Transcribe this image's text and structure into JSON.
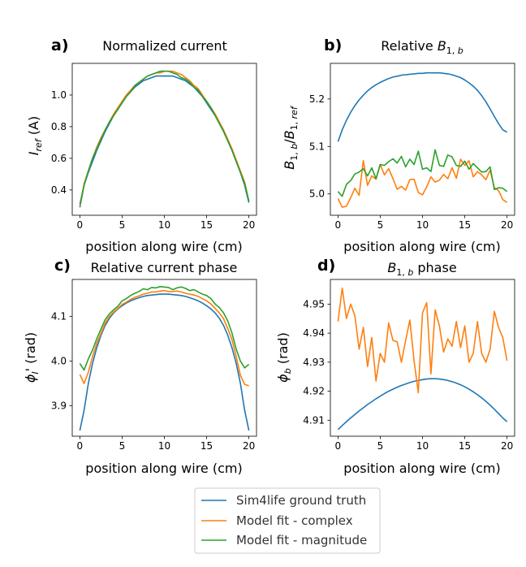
{
  "colors": {
    "ground_truth": "#1f77b4",
    "complex": "#ff7f0e",
    "magnitude": "#2ca02c"
  },
  "legend": {
    "ground_truth": "Sim4life ground truth",
    "complex": "Model fit - complex",
    "magnitude": "Model fit - magnitude"
  },
  "chart_data": [
    {
      "type": "line",
      "panel_label": "a)",
      "title": "Normalized current",
      "xlabel": "position along wire (cm)",
      "ylabel": "I_ref (A)",
      "xlim": [
        -0.9,
        20.9
      ],
      "ylim": [
        0.24,
        1.2
      ],
      "xticks": [
        0,
        5,
        10,
        15,
        20
      ],
      "yticks": [
        0.4,
        0.6,
        0.8,
        1.0
      ],
      "ytick_labels": [
        "0.4",
        "0.6",
        "0.8",
        "1.0"
      ],
      "x": [
        0,
        0.5,
        1,
        1.5,
        2,
        2.5,
        3,
        3.5,
        4,
        4.5,
        5,
        5.5,
        6,
        6.5,
        7,
        7.5,
        8,
        8.5,
        9,
        9.5,
        10,
        10.5,
        11,
        11.5,
        12,
        12.5,
        13,
        13.5,
        14,
        14.5,
        15,
        15.5,
        16,
        16.5,
        17,
        17.5,
        18,
        18.5,
        19,
        19.5,
        20
      ],
      "series": [
        {
          "name": "Sim4life ground truth",
          "color_key": "ground_truth",
          "values": [
            0.29,
            0.43,
            0.51,
            0.58,
            0.65,
            0.71,
            0.77,
            0.82,
            0.87,
            0.91,
            0.95,
            0.99,
            1.02,
            1.05,
            1.07,
            1.09,
            1.1,
            1.11,
            1.12,
            1.12,
            1.12,
            1.12,
            1.12,
            1.11,
            1.1,
            1.09,
            1.07,
            1.05,
            1.02,
            0.99,
            0.95,
            0.91,
            0.87,
            0.82,
            0.77,
            0.71,
            0.65,
            0.58,
            0.51,
            0.43,
            0.32
          ]
        },
        {
          "name": "Model fit - complex",
          "color_key": "complex",
          "values": [
            0.3,
            0.44,
            0.52,
            0.6,
            0.67,
            0.73,
            0.78,
            0.83,
            0.88,
            0.92,
            0.96,
            1.0,
            1.03,
            1.06,
            1.08,
            1.1,
            1.12,
            1.13,
            1.14,
            1.14,
            1.15,
            1.15,
            1.15,
            1.14,
            1.13,
            1.11,
            1.09,
            1.06,
            1.04,
            1.0,
            0.96,
            0.92,
            0.88,
            0.83,
            0.78,
            0.72,
            0.66,
            0.59,
            0.52,
            0.45,
            0.33
          ]
        },
        {
          "name": "Model fit - magnitude",
          "color_key": "magnitude",
          "values": [
            0.31,
            0.43,
            0.52,
            0.6,
            0.66,
            0.72,
            0.78,
            0.83,
            0.87,
            0.91,
            0.95,
            0.99,
            1.02,
            1.06,
            1.08,
            1.1,
            1.12,
            1.13,
            1.14,
            1.15,
            1.15,
            1.15,
            1.14,
            1.13,
            1.11,
            1.1,
            1.08,
            1.05,
            1.03,
            0.99,
            0.96,
            0.92,
            0.87,
            0.82,
            0.77,
            0.71,
            0.65,
            0.58,
            0.51,
            0.44,
            0.33
          ]
        }
      ]
    },
    {
      "type": "line",
      "panel_label": "b)",
      "title": "Relative B_1,b",
      "xlabel": "position along wire (cm)",
      "ylabel": "B_1,b/B_1,ref",
      "xlim": [
        -0.9,
        20.9
      ],
      "ylim": [
        4.955,
        5.275
      ],
      "xticks": [
        0,
        5,
        10,
        15,
        20
      ],
      "yticks": [
        5.0,
        5.1,
        5.2
      ],
      "ytick_labels": [
        "5.0",
        "5.1",
        "5.2"
      ],
      "x": [
        0,
        0.5,
        1,
        1.5,
        2,
        2.5,
        3,
        3.5,
        4,
        4.5,
        5,
        5.5,
        6,
        6.5,
        7,
        7.5,
        8,
        8.5,
        9,
        9.5,
        10,
        10.5,
        11,
        11.5,
        12,
        12.5,
        13,
        13.5,
        14,
        14.5,
        15,
        15.5,
        16,
        16.5,
        17,
        17.5,
        18,
        18.5,
        19,
        19.5,
        20
      ],
      "series": [
        {
          "name": "Sim4life ground truth",
          "color_key": "ground_truth",
          "values": [
            5.11,
            5.135,
            5.155,
            5.172,
            5.186,
            5.198,
            5.208,
            5.217,
            5.224,
            5.23,
            5.235,
            5.239,
            5.243,
            5.246,
            5.248,
            5.25,
            5.251,
            5.252,
            5.253,
            5.254,
            5.254,
            5.255,
            5.255,
            5.255,
            5.255,
            5.254,
            5.253,
            5.251,
            5.248,
            5.245,
            5.24,
            5.234,
            5.227,
            5.218,
            5.207,
            5.194,
            5.179,
            5.163,
            5.148,
            5.135,
            5.13
          ]
        },
        {
          "name": "Model fit - complex",
          "color_key": "complex",
          "values": [
            4.99,
            4.972,
            4.974,
            4.992,
            5.012,
            4.997,
            5.07,
            5.018,
            5.038,
            5.031,
            5.062,
            5.04,
            5.053,
            5.032,
            5.01,
            5.016,
            5.008,
            5.03,
            5.031,
            5.003,
            4.998,
            5.015,
            5.036,
            5.025,
            5.029,
            5.041,
            5.032,
            5.055,
            5.033,
            5.073,
            5.06,
            5.07,
            5.036,
            5.047,
            5.04,
            5.03,
            5.05,
            5.013,
            5.007,
            4.988,
            4.982
          ]
        },
        {
          "name": "Model fit - magnitude",
          "color_key": "magnitude",
          "values": [
            5.005,
            4.995,
            5.02,
            5.028,
            5.042,
            5.046,
            5.053,
            5.038,
            5.055,
            5.032,
            5.062,
            5.06,
            5.068,
            5.074,
            5.065,
            5.079,
            5.057,
            5.073,
            5.062,
            5.09,
            5.052,
            5.055,
            5.047,
            5.093,
            5.06,
            5.058,
            5.082,
            5.078,
            5.06,
            5.058,
            5.069,
            5.052,
            5.064,
            5.055,
            5.046,
            5.047,
            5.057,
            5.009,
            5.013,
            5.012,
            5.005
          ]
        }
      ]
    },
    {
      "type": "line",
      "panel_label": "c)",
      "title": "Relative current phase",
      "xlabel": "position along wire (cm)",
      "ylabel": "φ_I' (rad)",
      "xlim": [
        -0.9,
        20.9
      ],
      "ylim": [
        3.832,
        4.183
      ],
      "xticks": [
        0,
        5,
        10,
        15,
        20
      ],
      "yticks": [
        3.9,
        4.0,
        4.1
      ],
      "ytick_labels": [
        "3.9",
        "4.0",
        "4.1"
      ],
      "x": [
        0,
        0.5,
        1,
        1.5,
        2,
        2.5,
        3,
        3.5,
        4,
        4.5,
        5,
        5.5,
        6,
        6.5,
        7,
        7.5,
        8,
        8.5,
        9,
        9.5,
        10,
        10.5,
        11,
        11.5,
        12,
        12.5,
        13,
        13.5,
        14,
        14.5,
        15,
        15.5,
        16,
        16.5,
        17,
        17.5,
        18,
        18.5,
        19,
        19.5,
        20
      ],
      "series": [
        {
          "name": "Sim4life ground truth",
          "color_key": "ground_truth",
          "values": [
            3.845,
            3.89,
            3.95,
            3.995,
            4.03,
            4.058,
            4.08,
            4.096,
            4.108,
            4.117,
            4.124,
            4.13,
            4.135,
            4.139,
            4.142,
            4.145,
            4.147,
            4.148,
            4.149,
            4.15,
            4.15,
            4.15,
            4.149,
            4.148,
            4.147,
            4.145,
            4.142,
            4.139,
            4.135,
            4.13,
            4.124,
            4.117,
            4.108,
            4.096,
            4.08,
            4.058,
            4.03,
            3.995,
            3.95,
            3.89,
            3.845
          ]
        },
        {
          "name": "Model fit - complex",
          "color_key": "complex",
          "values": [
            3.97,
            3.95,
            3.975,
            4.01,
            4.04,
            4.062,
            4.085,
            4.1,
            4.11,
            4.118,
            4.127,
            4.132,
            4.138,
            4.143,
            4.146,
            4.15,
            4.152,
            4.155,
            4.155,
            4.157,
            4.158,
            4.156,
            4.156,
            4.157,
            4.155,
            4.152,
            4.15,
            4.148,
            4.145,
            4.14,
            4.135,
            4.128,
            4.118,
            4.108,
            4.095,
            4.073,
            4.048,
            4.01,
            3.968,
            3.948,
            3.945
          ]
        },
        {
          "name": "Model fit - magnitude",
          "color_key": "magnitude",
          "values": [
            3.995,
            3.98,
            4.005,
            4.025,
            4.05,
            4.072,
            4.093,
            4.106,
            4.115,
            4.123,
            4.135,
            4.14,
            4.147,
            4.152,
            4.156,
            4.162,
            4.16,
            4.165,
            4.164,
            4.167,
            4.166,
            4.165,
            4.16,
            4.164,
            4.166,
            4.163,
            4.158,
            4.16,
            4.155,
            4.15,
            4.147,
            4.14,
            4.128,
            4.12,
            4.108,
            4.09,
            4.063,
            4.027,
            4.0,
            3.985,
            3.993
          ]
        }
      ]
    },
    {
      "type": "line",
      "panel_label": "d)",
      "title": "B_1,b phase",
      "xlabel": "position along wire (cm)",
      "ylabel": "φ_b (rad)",
      "xlim": [
        -0.9,
        20.9
      ],
      "ylim": [
        4.9045,
        4.9585
      ],
      "xticks": [
        0,
        5,
        10,
        15,
        20
      ],
      "yticks": [
        4.91,
        4.92,
        4.93,
        4.94,
        4.95
      ],
      "ytick_labels": [
        "4.91",
        "4.92",
        "4.93",
        "4.94",
        "4.95"
      ],
      "x": [
        0,
        0.5,
        1,
        1.5,
        2,
        2.5,
        3,
        3.5,
        4,
        4.5,
        5,
        5.5,
        6,
        6.5,
        7,
        7.5,
        8,
        8.5,
        9,
        9.5,
        10,
        10.5,
        11,
        11.5,
        12,
        12.5,
        13,
        13.5,
        14,
        14.5,
        15,
        15.5,
        16,
        16.5,
        17,
        17.5,
        18,
        18.5,
        19,
        19.5,
        20
      ],
      "series": [
        {
          "name": "Sim4life ground truth",
          "color_key": "ground_truth",
          "values": [
            4.9068,
            4.9082,
            4.9095,
            4.9108,
            4.912,
            4.9132,
            4.9143,
            4.9154,
            4.9164,
            4.9174,
            4.9183,
            4.9192,
            4.92,
            4.9207,
            4.9214,
            4.922,
            4.9225,
            4.923,
            4.9234,
            4.9237,
            4.924,
            4.9242,
            4.9243,
            4.9243,
            4.9242,
            4.924,
            4.9237,
            4.9233,
            4.9228,
            4.9222,
            4.9215,
            4.9207,
            4.9198,
            4.9188,
            4.9177,
            4.9165,
            4.9152,
            4.9138,
            4.9123,
            4.9108,
            4.9095
          ]
        },
        {
          "name": "Model fit - complex",
          "color_key": "complex",
          "values": [
            4.944,
            4.9555,
            4.945,
            4.95,
            4.946,
            4.9345,
            4.942,
            4.9285,
            4.9385,
            4.9235,
            4.933,
            4.93,
            4.9435,
            4.9375,
            4.937,
            4.93,
            4.9375,
            4.9445,
            4.9305,
            4.9195,
            4.947,
            4.9505,
            4.926,
            4.948,
            4.9425,
            4.9335,
            4.938,
            4.9355,
            4.944,
            4.935,
            4.9425,
            4.93,
            4.933,
            4.944,
            4.933,
            4.93,
            4.9345,
            4.9475,
            4.942,
            4.9385,
            4.9305
          ]
        }
      ]
    }
  ]
}
